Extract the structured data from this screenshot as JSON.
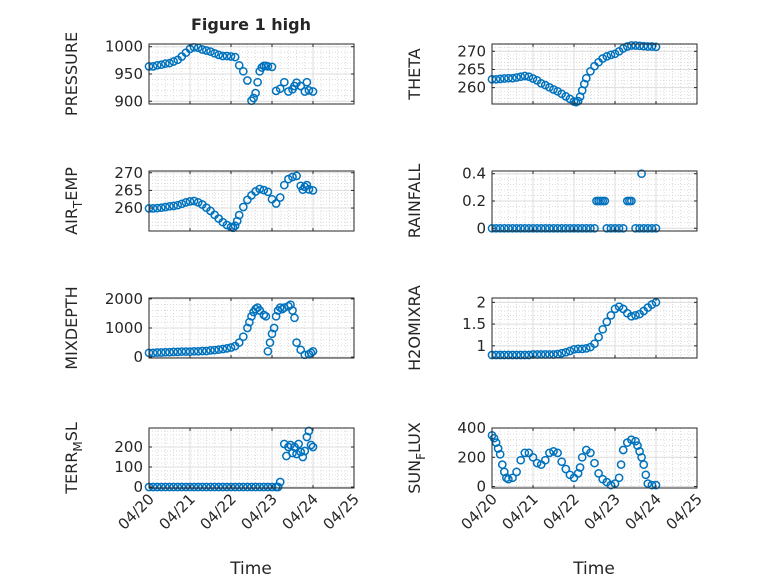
{
  "figure": {
    "title": "Figure 1 high",
    "marker_color": "#0072BD"
  },
  "chart_data": [
    {
      "id": "pressure",
      "type": "scatter",
      "ylabel": "PRESSURE",
      "xlim": [
        0,
        5
      ],
      "ylim": [
        895,
        1005
      ],
      "yticks": [
        900,
        950,
        1000
      ],
      "xticks": [
        0,
        1,
        2,
        3,
        4,
        5
      ],
      "xticklabels": [
        "04/20",
        "04/21",
        "04/22",
        "04/23",
        "04/24",
        "04/25"
      ],
      "grid": true,
      "minor_grid": true,
      "show_xticklabels": false,
      "x": [
        0.0,
        0.1,
        0.2,
        0.3,
        0.4,
        0.5,
        0.6,
        0.7,
        0.8,
        0.9,
        1.0,
        1.1,
        1.2,
        1.3,
        1.4,
        1.5,
        1.6,
        1.7,
        1.8,
        1.9,
        2.0,
        2.1,
        2.2,
        2.3,
        2.4,
        2.5,
        2.55,
        2.6,
        2.65,
        2.7,
        2.75,
        2.8,
        2.85,
        2.9,
        3.0,
        3.1,
        3.2,
        3.3,
        3.4,
        3.5,
        3.55,
        3.6,
        3.7,
        3.8,
        3.85,
        3.9,
        4.0
      ],
      "y": [
        964,
        964,
        966,
        967,
        969,
        970,
        973,
        976,
        982,
        989,
        996,
        999,
        998,
        995,
        993,
        991,
        988,
        985,
        983,
        983,
        982,
        981,
        966,
        955,
        938,
        901,
        906,
        915,
        935,
        955,
        962,
        965,
        965,
        964,
        963,
        919,
        923,
        935,
        918,
        922,
        928,
        934,
        928,
        918,
        935,
        920,
        918
      ]
    },
    {
      "id": "theta",
      "type": "scatter",
      "ylabel": "THETA",
      "xlim": [
        0,
        5
      ],
      "ylim": [
        255.5,
        272
      ],
      "yticks": [
        260,
        265,
        270
      ],
      "xticks": [
        0,
        1,
        2,
        3,
        4,
        5
      ],
      "xticklabels": [
        "04/20",
        "04/21",
        "04/22",
        "04/23",
        "04/24",
        "04/25"
      ],
      "grid": true,
      "minor_grid": true,
      "show_xticklabels": false,
      "x": [
        0.0,
        0.1,
        0.2,
        0.3,
        0.4,
        0.5,
        0.6,
        0.7,
        0.8,
        0.9,
        1.0,
        1.1,
        1.2,
        1.3,
        1.4,
        1.5,
        1.6,
        1.7,
        1.8,
        1.9,
        2.0,
        2.05,
        2.1,
        2.15,
        2.2,
        2.25,
        2.3,
        2.4,
        2.5,
        2.6,
        2.7,
        2.8,
        2.9,
        3.0,
        3.1,
        3.2,
        3.3,
        3.4,
        3.5,
        3.6,
        3.7,
        3.8,
        3.9,
        4.0
      ],
      "y": [
        262.3,
        262.3,
        262.4,
        262.5,
        262.6,
        262.6,
        262.8,
        263.0,
        263.2,
        263.0,
        262.5,
        262.0,
        261.2,
        260.7,
        260.1,
        259.5,
        259.0,
        258.3,
        257.6,
        256.9,
        256.2,
        256.0,
        256.3,
        257.5,
        259.2,
        261.0,
        262.6,
        264.5,
        265.9,
        267.0,
        268.0,
        268.6,
        269.0,
        269.3,
        270.0,
        270.8,
        271.3,
        271.6,
        271.6,
        271.5,
        271.4,
        271.3,
        271.3,
        271.2
      ]
    },
    {
      "id": "air_temp",
      "type": "scatter",
      "ylabel": "AIR_TEMP",
      "xlim": [
        0,
        5
      ],
      "ylim": [
        253.5,
        270.5
      ],
      "yticks": [
        260,
        265,
        270
      ],
      "xticks": [
        0,
        1,
        2,
        3,
        4,
        5
      ],
      "xticklabels": [
        "04/20",
        "04/21",
        "04/22",
        "04/23",
        "04/24",
        "04/25"
      ],
      "grid": true,
      "minor_grid": true,
      "show_xticklabels": false,
      "x": [
        0.0,
        0.1,
        0.2,
        0.3,
        0.4,
        0.5,
        0.6,
        0.7,
        0.8,
        0.9,
        1.0,
        1.1,
        1.2,
        1.3,
        1.4,
        1.5,
        1.6,
        1.7,
        1.8,
        1.9,
        2.0,
        2.05,
        2.1,
        2.15,
        2.2,
        2.3,
        2.4,
        2.5,
        2.6,
        2.7,
        2.8,
        2.9,
        3.0,
        3.1,
        3.2,
        3.3,
        3.4,
        3.5,
        3.6,
        3.7,
        3.75,
        3.8,
        3.85,
        3.9,
        4.0
      ],
      "y": [
        259.9,
        259.9,
        260.0,
        260.1,
        260.3,
        260.5,
        260.6,
        260.8,
        261.2,
        261.6,
        261.9,
        262.0,
        261.6,
        261.0,
        260.1,
        259.2,
        258.1,
        257.0,
        256.0,
        255.2,
        254.6,
        254.4,
        255.0,
        256.3,
        258.0,
        260.3,
        262.3,
        263.6,
        264.7,
        265.4,
        265.1,
        264.6,
        262.5,
        261.3,
        263.0,
        266.5,
        268.2,
        268.8,
        269.1,
        266.3,
        265.2,
        266.0,
        266.5,
        265.3,
        265.0
      ]
    },
    {
      "id": "rainfall",
      "type": "scatter",
      "ylabel": "RAINFALL",
      "xlim": [
        0,
        5
      ],
      "ylim": [
        -0.02,
        0.42
      ],
      "yticks": [
        0,
        0.2,
        0.4
      ],
      "yticklabels": [
        "0",
        "0.2",
        "0.4"
      ],
      "xticks": [
        0,
        1,
        2,
        3,
        4,
        5
      ],
      "xticklabels": [
        "04/20",
        "04/21",
        "04/22",
        "04/23",
        "04/24",
        "04/25"
      ],
      "grid": true,
      "minor_grid": true,
      "show_xticklabels": false,
      "x": [
        0.0,
        0.1,
        0.2,
        0.3,
        0.4,
        0.5,
        0.6,
        0.7,
        0.8,
        0.9,
        1.0,
        1.1,
        1.2,
        1.3,
        1.4,
        1.5,
        1.6,
        1.7,
        1.8,
        1.9,
        2.0,
        2.1,
        2.2,
        2.3,
        2.4,
        2.5,
        2.55,
        2.6,
        2.65,
        2.7,
        2.75,
        2.8,
        2.9,
        3.0,
        3.1,
        3.2,
        3.3,
        3.35,
        3.4,
        3.5,
        3.6,
        3.65,
        3.7,
        3.8,
        3.9,
        4.0
      ],
      "y": [
        0,
        0,
        0,
        0,
        0,
        0,
        0,
        0,
        0,
        0,
        0,
        0,
        0,
        0,
        0,
        0,
        0,
        0,
        0,
        0,
        0,
        0,
        0,
        0,
        0,
        0,
        0.2,
        0.2,
        0.2,
        0.2,
        0.2,
        0,
        0,
        0,
        0,
        0,
        0.2,
        0.2,
        0.2,
        0,
        0,
        0.4,
        0,
        0,
        0,
        0
      ]
    },
    {
      "id": "mixdepth",
      "type": "scatter",
      "ylabel": "MIXDEPTH",
      "xlim": [
        0,
        5
      ],
      "ylim": [
        -30,
        2030
      ],
      "yticks": [
        0,
        1000,
        2000
      ],
      "xticks": [
        0,
        1,
        2,
        3,
        4,
        5
      ],
      "xticklabels": [
        "04/20",
        "04/21",
        "04/22",
        "04/23",
        "04/24",
        "04/25"
      ],
      "grid": true,
      "minor_grid": true,
      "show_xticklabels": false,
      "x": [
        0.0,
        0.1,
        0.2,
        0.3,
        0.4,
        0.5,
        0.6,
        0.7,
        0.8,
        0.9,
        1.0,
        1.1,
        1.2,
        1.3,
        1.4,
        1.5,
        1.6,
        1.7,
        1.8,
        1.9,
        2.0,
        2.1,
        2.2,
        2.3,
        2.4,
        2.45,
        2.5,
        2.55,
        2.6,
        2.65,
        2.7,
        2.8,
        2.85,
        2.9,
        2.95,
        3.0,
        3.05,
        3.1,
        3.15,
        3.2,
        3.25,
        3.3,
        3.4,
        3.45,
        3.5,
        3.55,
        3.6,
        3.7,
        3.8,
        3.9,
        3.95,
        4.0
      ],
      "y": [
        150,
        150,
        160,
        160,
        170,
        170,
        180,
        180,
        190,
        190,
        190,
        200,
        200,
        210,
        210,
        230,
        240,
        260,
        280,
        300,
        330,
        380,
        500,
        700,
        1000,
        1200,
        1400,
        1550,
        1650,
        1700,
        1600,
        1450,
        1400,
        200,
        500,
        800,
        1000,
        1400,
        1600,
        1700,
        1650,
        1700,
        1750,
        1800,
        1600,
        1350,
        500,
        250,
        80,
        100,
        150,
        200
      ]
    },
    {
      "id": "h2omixra",
      "type": "scatter",
      "ylabel": "H2OMIXRA",
      "xlim": [
        0,
        5
      ],
      "ylim": [
        0.72,
        2.1
      ],
      "yticks": [
        1,
        1.5,
        2
      ],
      "yticklabels": [
        "1",
        "1.5",
        "2"
      ],
      "xticks": [
        0,
        1,
        2,
        3,
        4,
        5
      ],
      "xticklabels": [
        "04/20",
        "04/21",
        "04/22",
        "04/23",
        "04/24",
        "04/25"
      ],
      "grid": true,
      "minor_grid": true,
      "show_xticklabels": false,
      "x": [
        0.0,
        0.1,
        0.2,
        0.3,
        0.4,
        0.5,
        0.6,
        0.7,
        0.8,
        0.9,
        1.0,
        1.1,
        1.2,
        1.3,
        1.4,
        1.5,
        1.6,
        1.7,
        1.8,
        1.9,
        2.0,
        2.1,
        2.2,
        2.3,
        2.4,
        2.5,
        2.6,
        2.7,
        2.8,
        2.9,
        3.0,
        3.1,
        3.2,
        3.3,
        3.4,
        3.5,
        3.6,
        3.7,
        3.8,
        3.9,
        4.0
      ],
      "y": [
        0.79,
        0.79,
        0.79,
        0.79,
        0.79,
        0.79,
        0.79,
        0.79,
        0.79,
        0.79,
        0.8,
        0.8,
        0.8,
        0.8,
        0.8,
        0.8,
        0.81,
        0.83,
        0.85,
        0.88,
        0.92,
        0.93,
        0.93,
        0.94,
        0.97,
        1.05,
        1.2,
        1.38,
        1.55,
        1.7,
        1.85,
        1.9,
        1.85,
        1.75,
        1.68,
        1.7,
        1.73,
        1.8,
        1.88,
        1.95,
        2.0
      ]
    },
    {
      "id": "terr_msl",
      "type": "scatter",
      "ylabel": "TERR_MSL",
      "xlim": [
        0,
        5
      ],
      "ylim": [
        -5,
        295
      ],
      "yticks": [
        0,
        100,
        200
      ],
      "xticks": [
        0,
        1,
        2,
        3,
        4,
        5
      ],
      "xticklabels": [
        "04/20",
        "04/21",
        "04/22",
        "04/23",
        "04/24",
        "04/25"
      ],
      "grid": true,
      "minor_grid": true,
      "show_xticklabels": true,
      "x": [
        0.0,
        0.1,
        0.2,
        0.3,
        0.4,
        0.5,
        0.6,
        0.7,
        0.8,
        0.9,
        1.0,
        1.1,
        1.2,
        1.3,
        1.4,
        1.5,
        1.6,
        1.7,
        1.8,
        1.9,
        2.0,
        2.1,
        2.2,
        2.3,
        2.4,
        2.5,
        2.6,
        2.7,
        2.8,
        2.9,
        3.0,
        3.1,
        3.15,
        3.2,
        3.3,
        3.35,
        3.4,
        3.45,
        3.5,
        3.55,
        3.6,
        3.65,
        3.7,
        3.75,
        3.8,
        3.85,
        3.9,
        3.95,
        4.0
      ],
      "y": [
        0,
        0,
        0,
        0,
        0,
        0,
        0,
        0,
        0,
        0,
        0,
        0,
        0,
        0,
        0,
        0,
        0,
        0,
        0,
        0,
        0,
        0,
        0,
        0,
        0,
        0,
        0,
        0,
        0,
        0,
        0,
        0,
        0,
        25,
        215,
        155,
        200,
        210,
        170,
        200,
        165,
        215,
        175,
        150,
        180,
        250,
        280,
        210,
        200
      ]
    },
    {
      "id": "sun_flux",
      "type": "scatter",
      "ylabel": "SUN_FLUX",
      "xlim": [
        0,
        5
      ],
      "ylim": [
        -10,
        400
      ],
      "yticks": [
        0,
        200,
        400
      ],
      "xticks": [
        0,
        1,
        2,
        3,
        4,
        5
      ],
      "xticklabels": [
        "04/20",
        "04/21",
        "04/22",
        "04/23",
        "04/24",
        "04/25"
      ],
      "grid": true,
      "minor_grid": true,
      "show_xticklabels": true,
      "x": [
        0.0,
        0.05,
        0.1,
        0.15,
        0.2,
        0.25,
        0.3,
        0.35,
        0.4,
        0.5,
        0.6,
        0.7,
        0.8,
        0.9,
        1.0,
        1.1,
        1.2,
        1.3,
        1.4,
        1.5,
        1.6,
        1.7,
        1.8,
        1.9,
        2.0,
        2.1,
        2.15,
        2.2,
        2.3,
        2.4,
        2.5,
        2.6,
        2.7,
        2.8,
        2.9,
        3.0,
        3.1,
        3.15,
        3.2,
        3.3,
        3.4,
        3.5,
        3.55,
        3.6,
        3.65,
        3.7,
        3.75,
        3.8,
        3.9,
        4.0
      ],
      "y": [
        350,
        330,
        300,
        260,
        220,
        150,
        100,
        60,
        50,
        60,
        100,
        180,
        230,
        230,
        200,
        160,
        150,
        180,
        230,
        240,
        230,
        170,
        120,
        80,
        60,
        90,
        130,
        200,
        250,
        230,
        160,
        90,
        50,
        30,
        10,
        20,
        60,
        150,
        250,
        300,
        320,
        310,
        280,
        240,
        200,
        150,
        80,
        20,
        10,
        10
      ]
    }
  ]
}
